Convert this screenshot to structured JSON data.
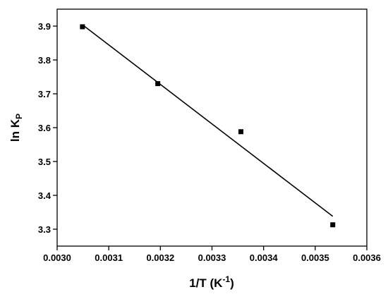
{
  "chart_data": {
    "type": "scatter",
    "title": "",
    "xlabel_main": "1/T (K",
    "xlabel_sup": "-1",
    "xlabel_close": ")",
    "ylabel_main": "ln K",
    "ylabel_sub": "P",
    "xlim": [
      0.003,
      0.0036
    ],
    "ylim": [
      3.25,
      3.95
    ],
    "x_ticks": [
      "0.0030",
      "0.0031",
      "0.0032",
      "0.0033",
      "0.0034",
      "0.0035",
      "0.0036"
    ],
    "y_ticks": [
      "3.3",
      "3.4",
      "3.5",
      "3.6",
      "3.7",
      "3.8",
      "3.9"
    ],
    "grid": false,
    "legend": "none",
    "series": [
      {
        "marker": "square",
        "color": "#000000",
        "x": [
          0.003049,
          0.003195,
          0.003356,
          0.003534
        ],
        "y": [
          3.898,
          3.73,
          3.588,
          3.313
        ]
      }
    ],
    "fit_line": {
      "color": "#000000",
      "x": [
        0.003049,
        0.003534
      ],
      "y": [
        3.904,
        3.338
      ]
    }
  }
}
